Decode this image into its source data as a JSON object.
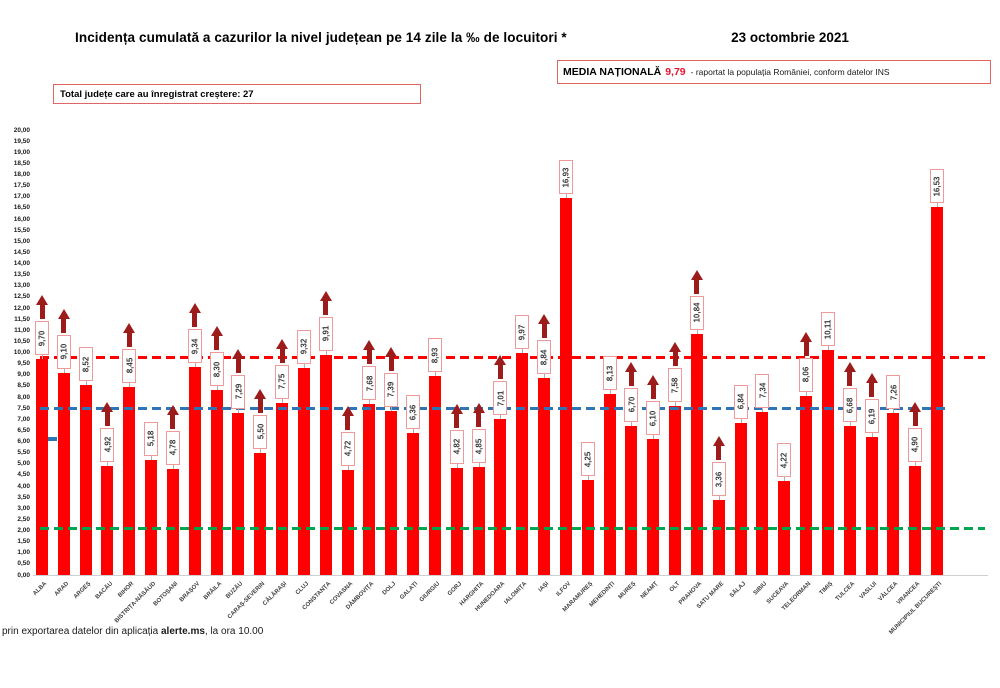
{
  "header": {
    "title": "Incidența cumulată a cazurilor la nivel județean pe 14 zile la ‰ de locuitori *",
    "date": "23 octombrie 2021",
    "national_average_label": "MEDIA NAȚIONALĂ",
    "national_average_value": "9,79",
    "national_average_note": "-  raportat la populația României, conform datelor INS",
    "total_increase_text": "Total județe care au înregistrat creștere:  27"
  },
  "footer": {
    "prefix": "prin exportarea datelor din aplicația ",
    "app_name": "alerte.ms",
    "suffix": ", la ora 10.00"
  },
  "chart_data": {
    "type": "bar",
    "title": "Incidența cumulată a cazurilor la nivel județean pe 14 zile la ‰ de locuitori *",
    "xlabel": "",
    "ylabel": "",
    "ylim": [
      0,
      20
    ],
    "ytick_step": 0.5,
    "grid": false,
    "bar_color": "#ff0000",
    "arrow_color": "#9c1b1b",
    "categories": [
      "ALBA",
      "ARAD",
      "ARGEȘ",
      "BACĂU",
      "BIHOR",
      "BISTRIȚA-NĂSĂUD",
      "BOTOȘANI",
      "BRAȘOV",
      "BRĂILA",
      "BUZĂU",
      "CARAȘ-SEVERIN",
      "CĂLĂRAȘI",
      "CLUJ",
      "CONSTANȚA",
      "COVASNA",
      "DÂMBOVIȚA",
      "DOLJ",
      "GALAȚI",
      "GIURGIU",
      "GORJ",
      "HARGHITA",
      "HUNEDOARA",
      "IALOMIȚA",
      "IAȘI",
      "ILFOV",
      "MARAMUREȘ",
      "MEHEDINȚI",
      "MUREȘ",
      "NEAMȚ",
      "OLT",
      "PRAHOVA",
      "SATU MARE",
      "SĂLAJ",
      "SIBIU",
      "SUCEAVA",
      "TELEORMAN",
      "TIMIȘ",
      "TULCEA",
      "VASLUI",
      "VÂLCEA",
      "VRANCEA",
      "MUNICIPIUL BUCUREȘTI"
    ],
    "values": [
      9.7,
      9.1,
      8.52,
      4.92,
      8.45,
      5.18,
      4.78,
      9.34,
      8.3,
      7.29,
      5.5,
      7.75,
      9.32,
      9.91,
      4.72,
      7.68,
      7.39,
      6.36,
      8.93,
      4.82,
      4.85,
      7.01,
      9.97,
      8.84,
      16.93,
      4.25,
      8.13,
      6.7,
      6.1,
      7.58,
      10.84,
      3.36,
      6.84,
      7.34,
      4.22,
      8.06,
      10.11,
      6.68,
      6.19,
      7.26,
      4.9,
      16.53
    ],
    "increase": [
      1,
      1,
      0,
      1,
      1,
      0,
      1,
      1,
      1,
      1,
      1,
      1,
      0,
      1,
      1,
      1,
      1,
      0,
      0,
      1,
      1,
      1,
      0,
      1,
      0,
      0,
      0,
      1,
      1,
      1,
      1,
      1,
      0,
      0,
      0,
      1,
      0,
      1,
      1,
      0,
      1,
      0
    ],
    "reference_lines": [
      {
        "name": "media-nationala",
        "value": 9.79,
        "color": "#ff0000"
      },
      {
        "name": "prag-albastru",
        "value": 7.5,
        "color": "#2e75b6"
      },
      {
        "name": "prag-verde",
        "value": 2.1,
        "color": "#00a550"
      }
    ],
    "legend_position": "none"
  }
}
